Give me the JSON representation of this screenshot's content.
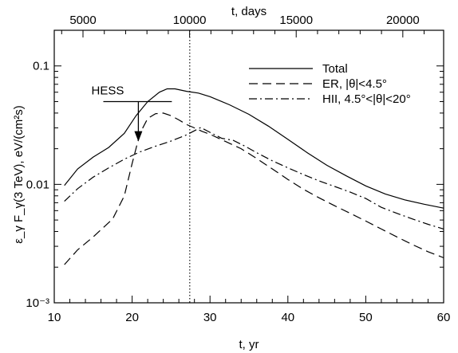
{
  "chart_data": {
    "type": "line",
    "xlabel_bottom": "t, yr",
    "xlabel_top": "t, days",
    "ylabel": "ε_γ F_γ(3 TeV), eV/(cm²s)",
    "xlim": [
      10,
      60
    ],
    "ylim": [
      0.001,
      0.2
    ],
    "y_scale": "log",
    "bottom_ticks": [
      "10",
      "20",
      "30",
      "40",
      "50",
      "60"
    ],
    "bottom_tick_values": [
      10,
      20,
      30,
      40,
      50,
      60
    ],
    "top_ticks": [
      "5000",
      "10000",
      "15000",
      "20000"
    ],
    "top_tick_values_days": [
      5000,
      10000,
      15000,
      20000
    ],
    "y_tick_labels": [
      "10⁻³",
      "0.01",
      "0.1"
    ],
    "y_tick_values": [
      0.001,
      0.01,
      0.1
    ],
    "vertical_marker_yr": 27.4,
    "hess_limit": {
      "label": "HESS",
      "x_range": [
        16.3,
        25.1
      ],
      "level": 0.05,
      "arrow_x": 20.8,
      "arrow_to": 0.023
    },
    "series": [
      {
        "name": "Total",
        "style": "solid",
        "x": [
          11.3,
          13,
          15,
          17,
          19,
          20.5,
          22,
          23.5,
          24.5,
          25.5,
          27,
          28.5,
          30,
          32.5,
          35,
          37.5,
          40,
          42.5,
          45,
          47.5,
          50,
          52.5,
          55,
          57.5,
          60
        ],
        "y": [
          0.0098,
          0.0135,
          0.017,
          0.0205,
          0.027,
          0.038,
          0.05,
          0.06,
          0.064,
          0.064,
          0.061,
          0.059,
          0.055,
          0.047,
          0.039,
          0.031,
          0.024,
          0.0185,
          0.0145,
          0.0118,
          0.0097,
          0.0083,
          0.0074,
          0.0068,
          0.0063
        ]
      },
      {
        "name": "ER, |θ|<4.5°",
        "style": "dashed",
        "x": [
          11.3,
          13,
          15,
          17.5,
          19,
          20,
          21,
          22,
          23,
          24,
          25,
          26,
          27,
          28,
          29,
          30,
          32,
          34,
          36,
          38,
          40,
          42,
          44,
          46,
          48,
          50,
          52,
          54,
          56,
          58,
          60
        ],
        "y": [
          0.0021,
          0.0028,
          0.0036,
          0.0051,
          0.008,
          0.015,
          0.027,
          0.036,
          0.0395,
          0.04,
          0.038,
          0.035,
          0.032,
          0.03,
          0.028,
          0.0265,
          0.023,
          0.02,
          0.0165,
          0.0135,
          0.011,
          0.0091,
          0.0077,
          0.0066,
          0.0057,
          0.0049,
          0.0042,
          0.0036,
          0.0031,
          0.0027,
          0.0024
        ]
      },
      {
        "name": "HII, 4.5°<|θ|<20°",
        "style": "dashdot",
        "x": [
          11.3,
          13,
          15,
          17,
          19,
          21,
          23,
          25,
          27,
          28.8,
          30,
          31.5,
          33,
          34.5,
          36,
          38,
          40,
          42,
          44,
          46,
          48,
          50,
          52,
          54,
          56,
          58,
          60
        ],
        "y": [
          0.0072,
          0.0092,
          0.0115,
          0.0138,
          0.0163,
          0.0188,
          0.021,
          0.0232,
          0.0262,
          0.0302,
          0.0275,
          0.0245,
          0.0235,
          0.021,
          0.0185,
          0.0158,
          0.0138,
          0.0121,
          0.0107,
          0.0096,
          0.0086,
          0.0076,
          0.0064,
          0.0057,
          0.0051,
          0.0046,
          0.0042
        ]
      }
    ],
    "legend_placement": "top-right",
    "grid": false
  }
}
